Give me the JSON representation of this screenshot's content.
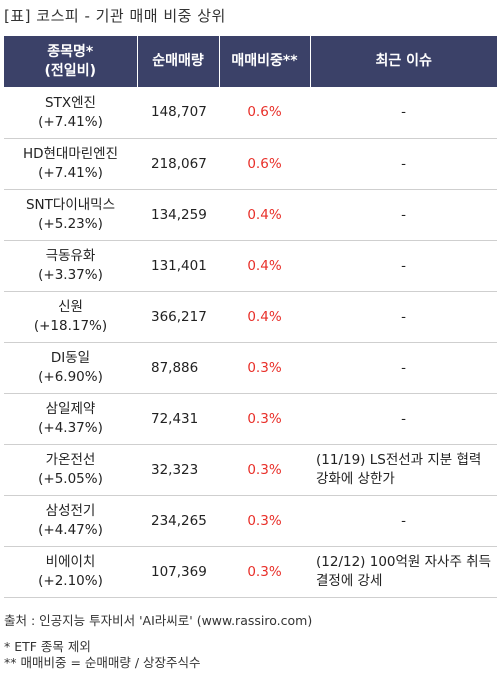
{
  "title": "[표] 코스피 - 기관 매매 비중 상위",
  "headers": {
    "name_line1": "종목명*",
    "name_line2": "(전일비)",
    "volume": "순매매량",
    "ratio": "매매비중**",
    "issue": "최근 이슈"
  },
  "rows": [
    {
      "name": "STX엔진",
      "change": "(+7.41%)",
      "volume": "148,707",
      "ratio": "0.6%",
      "issue": "-"
    },
    {
      "name": "HD현대마린엔진",
      "change": "(+7.41%)",
      "volume": "218,067",
      "ratio": "0.6%",
      "issue": "-"
    },
    {
      "name": "SNT다이내믹스",
      "change": "(+5.23%)",
      "volume": "134,259",
      "ratio": "0.4%",
      "issue": "-"
    },
    {
      "name": "극동유화",
      "change": "(+3.37%)",
      "volume": "131,401",
      "ratio": "0.4%",
      "issue": "-"
    },
    {
      "name": "신원",
      "change": "(+18.17%)",
      "volume": "366,217",
      "ratio": "0.4%",
      "issue": "-"
    },
    {
      "name": "DI동일",
      "change": "(+6.90%)",
      "volume": "87,886",
      "ratio": "0.3%",
      "issue": "-"
    },
    {
      "name": "삼일제약",
      "change": "(+4.37%)",
      "volume": "72,431",
      "ratio": "0.3%",
      "issue": "-"
    },
    {
      "name": "가온전선",
      "change": "(+5.05%)",
      "volume": "32,323",
      "ratio": "0.3%",
      "issue": "(11/19) LS전선과 지분 협력 강화에 상한가"
    },
    {
      "name": "삼성전기",
      "change": "(+4.47%)",
      "volume": "234,265",
      "ratio": "0.3%",
      "issue": "-"
    },
    {
      "name": "비에이치",
      "change": "(+2.10%)",
      "volume": "107,369",
      "ratio": "0.3%",
      "issue": "(12/12) 100억원 자사주 취득 결정에 강세"
    }
  ],
  "footer": {
    "source": "출처 : 인공지능 투자비서 'AI라씨로' (www.rassiro.com)",
    "note1": "* ETF 종목 제외",
    "note2": "** 매매비중 = 순매매량 / 상장주식수"
  },
  "colors": {
    "header_bg": "#3b4168",
    "ratio_text": "#e8302a"
  }
}
